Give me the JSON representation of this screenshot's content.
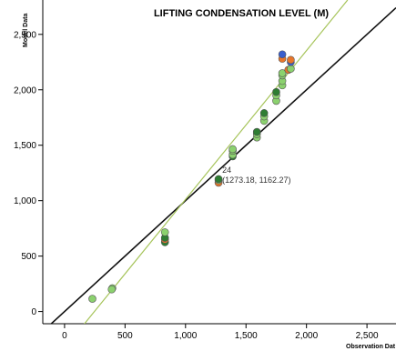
{
  "chart_data": {
    "type": "scatter",
    "title": "LIFTING CONDENSATION LEVEL (M)",
    "xlabel": "Observation Dat",
    "ylabel": "Model Data",
    "xlim": [
      -180,
      2740
    ],
    "ylim": [
      -110,
      2810
    ],
    "x_ticks": [
      0,
      500,
      1000,
      1500,
      2000,
      2500
    ],
    "y_ticks": [
      0,
      500,
      1000,
      1500,
      2000,
      2500
    ],
    "x_tick_labels": [
      "0",
      "500",
      "1,000",
      "1,500",
      "2,000",
      "2,500"
    ],
    "y_tick_labels": [
      "0",
      "500",
      "1,000",
      "1,500",
      "2,000",
      "2,500"
    ],
    "colors": {
      "one_to_one_line": "#111111",
      "fit_line": "#a6c45a",
      "green": "#8bd16e",
      "dark_green": "#2e7d32",
      "orange": "#e8762b",
      "blue": "#3a5fcd",
      "marker_stroke": "#555555"
    },
    "lines": [
      {
        "kind": "one_to_one",
        "x": [
          -180,
          2740
        ],
        "y": [
          -180,
          2740
        ],
        "color": "#111111"
      },
      {
        "kind": "fit",
        "x": [
          120,
          2340
        ],
        "y": [
          -170,
          2810
        ],
        "color": "#a6c45a"
      }
    ],
    "annotation": {
      "x": 1273.18,
      "y": 1162.27,
      "label": "24",
      "coords": "(1273.18, 1162.27)"
    },
    "points": [
      {
        "x": 230,
        "y": 115,
        "color": "green"
      },
      {
        "x": 395,
        "y": 210,
        "color": "green"
      },
      {
        "x": 390,
        "y": 200,
        "color": "green"
      },
      {
        "x": 830,
        "y": 625,
        "color": "dark_green"
      },
      {
        "x": 830,
        "y": 650,
        "color": "orange"
      },
      {
        "x": 830,
        "y": 665,
        "color": "dark_green"
      },
      {
        "x": 830,
        "y": 715,
        "color": "green"
      },
      {
        "x": 1273,
        "y": 1162,
        "color": "orange"
      },
      {
        "x": 1273,
        "y": 1185,
        "color": "green"
      },
      {
        "x": 1273,
        "y": 1195,
        "color": "dark_green"
      },
      {
        "x": 1390,
        "y": 1400,
        "color": "dark_green"
      },
      {
        "x": 1390,
        "y": 1415,
        "color": "green"
      },
      {
        "x": 1390,
        "y": 1450,
        "color": "green"
      },
      {
        "x": 1390,
        "y": 1465,
        "color": "green"
      },
      {
        "x": 1590,
        "y": 1570,
        "color": "green"
      },
      {
        "x": 1590,
        "y": 1600,
        "color": "green"
      },
      {
        "x": 1590,
        "y": 1620,
        "color": "dark_green"
      },
      {
        "x": 1650,
        "y": 1720,
        "color": "green"
      },
      {
        "x": 1650,
        "y": 1760,
        "color": "green"
      },
      {
        "x": 1650,
        "y": 1790,
        "color": "dark_green"
      },
      {
        "x": 1750,
        "y": 1900,
        "color": "green"
      },
      {
        "x": 1750,
        "y": 1950,
        "color": "green"
      },
      {
        "x": 1750,
        "y": 1980,
        "color": "dark_green"
      },
      {
        "x": 1800,
        "y": 2040,
        "color": "green"
      },
      {
        "x": 1800,
        "y": 2080,
        "color": "green"
      },
      {
        "x": 1800,
        "y": 2130,
        "color": "green"
      },
      {
        "x": 1800,
        "y": 2150,
        "color": "green"
      },
      {
        "x": 1800,
        "y": 2280,
        "color": "orange"
      },
      {
        "x": 1800,
        "y": 2320,
        "color": "blue"
      },
      {
        "x": 1850,
        "y": 2180,
        "color": "orange"
      },
      {
        "x": 1870,
        "y": 2190,
        "color": "green"
      },
      {
        "x": 1870,
        "y": 2250,
        "color": "blue"
      },
      {
        "x": 1870,
        "y": 2270,
        "color": "orange"
      }
    ]
  }
}
